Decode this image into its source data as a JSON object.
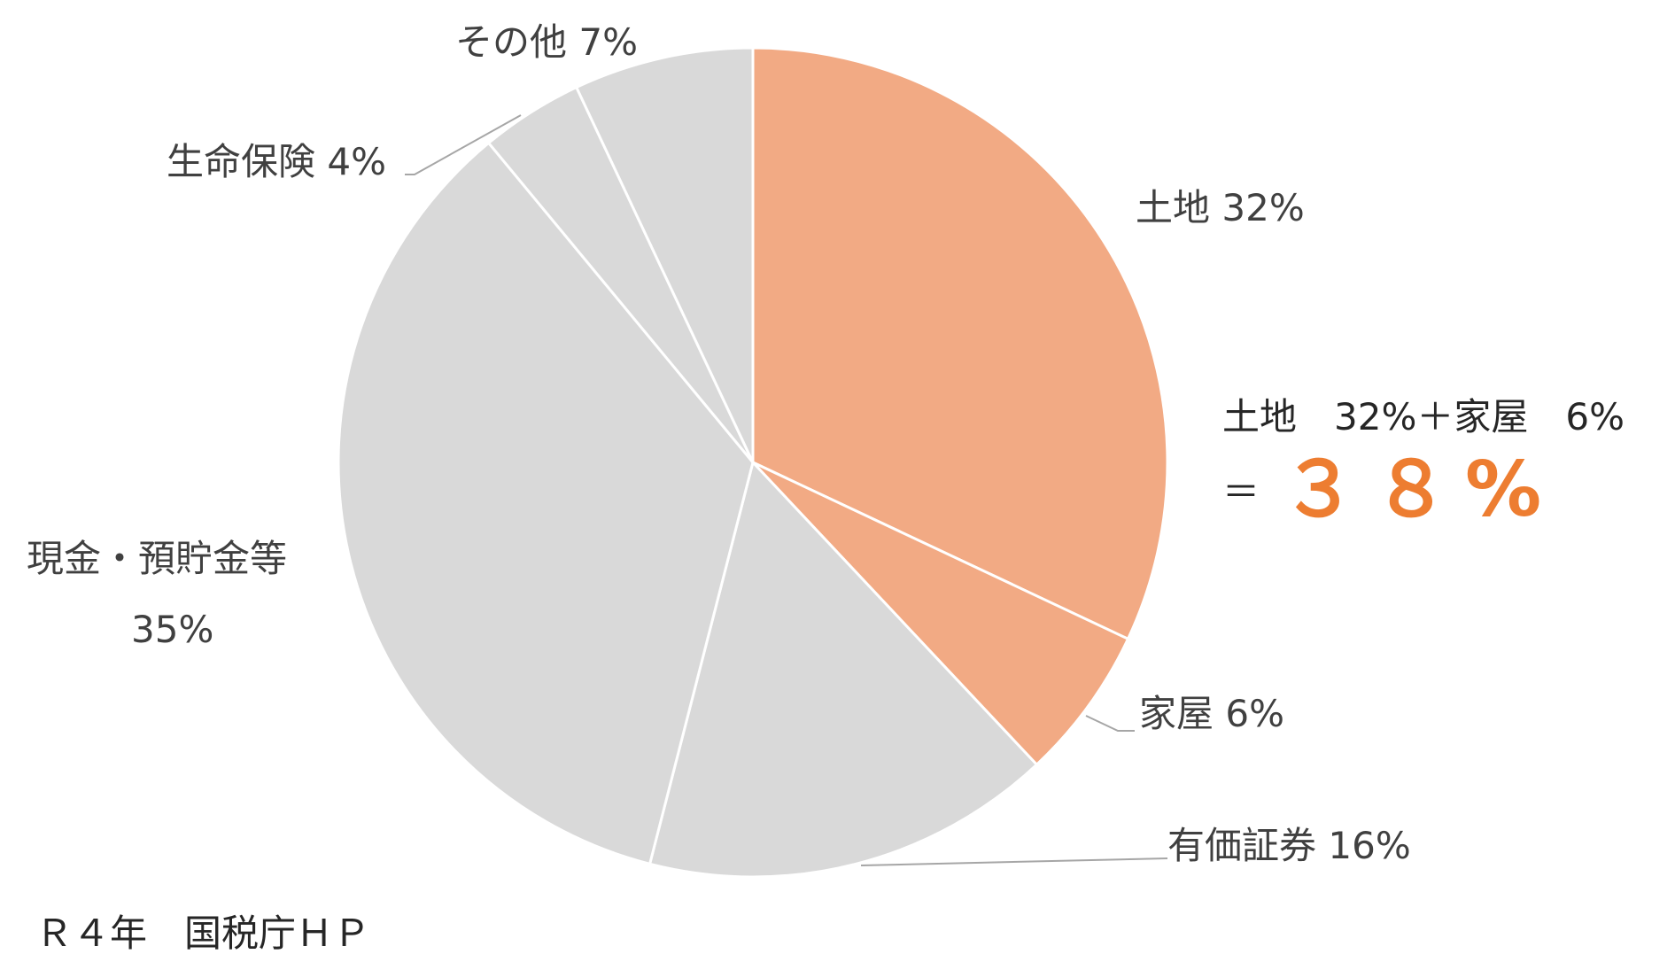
{
  "chart_data": {
    "type": "pie",
    "start_angle_deg": 0,
    "direction": "clockwise",
    "slices": [
      {
        "label": "土地",
        "value_label": "32%",
        "value": 32,
        "color": "#F2AA84"
      },
      {
        "label": "家屋",
        "value_label": "6%",
        "value": 6,
        "color": "#F2AA84"
      },
      {
        "label": "有価証券",
        "value_label": "16%",
        "value": 16,
        "color": "#D9D9D9"
      },
      {
        "label": "現金・預貯金等",
        "value_label": "35%",
        "value": 35,
        "color": "#D9D9D9"
      },
      {
        "label": "生命保険",
        "value_label": "4%",
        "value": 4,
        "color": "#D9D9D9"
      },
      {
        "label": "その他",
        "value_label": "7%",
        "value": 7,
        "color": "#D9D9D9"
      }
    ],
    "slice_border_color": "#FFFFFF",
    "leader_line_color": "#A6A6A6"
  },
  "annotation": {
    "line1": "土地　32%＋家屋　6%",
    "equals": "＝",
    "total": "３８%",
    "total_color": "#ED7D31"
  },
  "source_note": "Ｒ４年　国税庁ＨＰ"
}
